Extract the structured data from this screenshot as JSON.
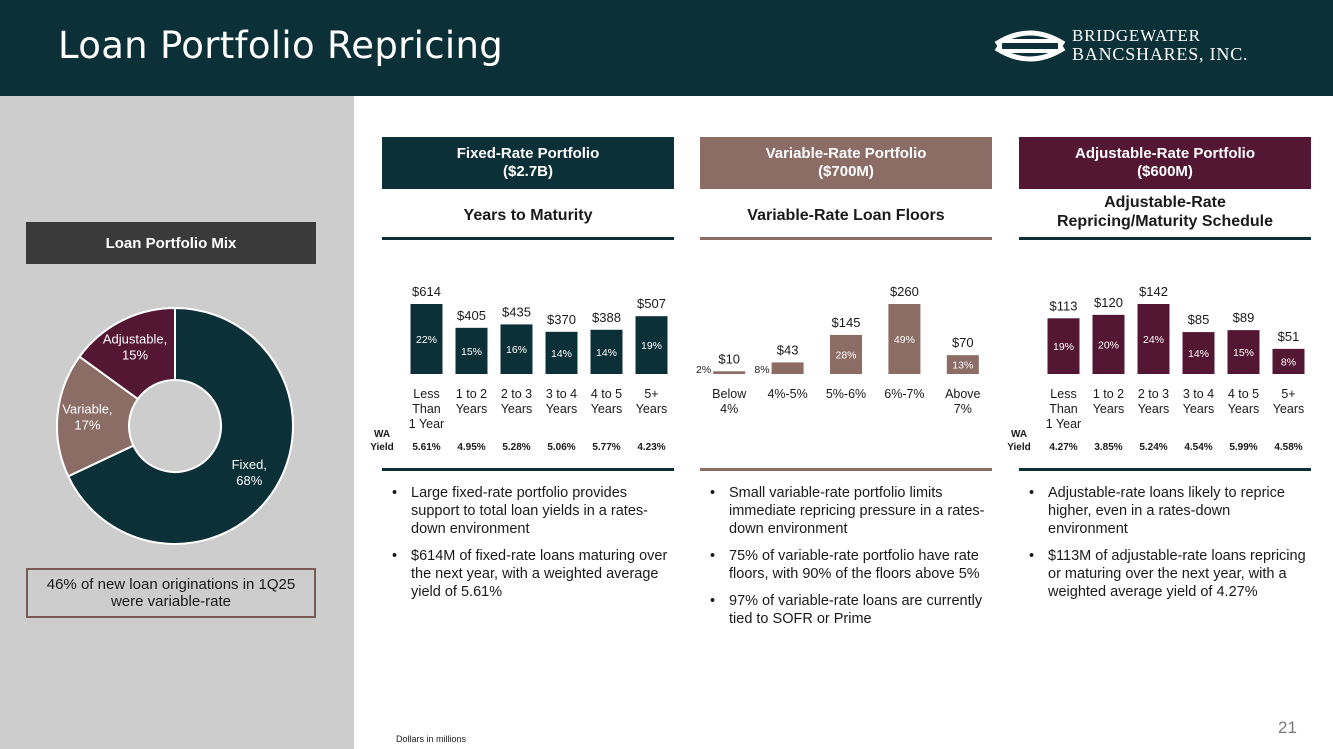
{
  "header": {
    "title": "Loan Portfolio Repricing",
    "logo_line1": "Bridgewater",
    "logo_line2": "Bancshares, Inc."
  },
  "colors": {
    "navy": "#0c3038",
    "taupe": "#8b6d66",
    "maroon": "#541733",
    "grey": "#cdcdcd"
  },
  "left": {
    "title": "Loan Portfolio Mix",
    "note": "46% of new loan originations in 1Q25 were variable-rate"
  },
  "fixed": {
    "header_line1": "Fixed-Rate Portfolio",
    "header_line2": "($2.7B)",
    "subtitle": "Years to Maturity",
    "bullets": [
      "Large fixed-rate portfolio provides support to total loan yields in a rates-down environment",
      "$614M of fixed-rate loans maturing over the next year, with a weighted average yield of 5.61%"
    ]
  },
  "variable": {
    "header_line1": "Variable-Rate Portfolio",
    "header_line2": "($700M)",
    "subtitle": "Variable-Rate Loan Floors",
    "bullets": [
      "Small variable-rate portfolio limits immediate repricing pressure in a rates-down environment",
      "75% of variable-rate portfolio have rate floors, with 90% of the floors above 5%",
      "97% of variable-rate loans are currently tied to SOFR or Prime"
    ]
  },
  "adjustable": {
    "header_line1": "Adjustable-Rate Portfolio",
    "header_line2": "($600M)",
    "subtitle_line1": "Adjustable-Rate",
    "subtitle_line2": "Repricing/Maturity Schedule",
    "bullets": [
      "Adjustable-rate loans likely to reprice higher, even in a rates-down environment",
      "$113M of adjustable-rate loans repricing or maturing over the next year, with a weighted average yield of 4.27%"
    ]
  },
  "footer": {
    "footnote": "Dollars in millions",
    "page_number": "21"
  },
  "chart_data": [
    {
      "id": "mix",
      "type": "pie",
      "title": "Loan Portfolio Mix",
      "slices": [
        {
          "label": "Fixed,",
          "pct_label": "68%",
          "value": 68,
          "color": "#0c3038"
        },
        {
          "label": "Variable,",
          "pct_label": "17%",
          "value": 17,
          "color": "#8b6d66"
        },
        {
          "label": "Adjustable,",
          "pct_label": "15%",
          "value": 15,
          "color": "#541733"
        }
      ]
    },
    {
      "id": "fixed",
      "type": "bar",
      "title": "Years to Maturity",
      "categories": [
        [
          "Less",
          "Than",
          "1 Year"
        ],
        [
          "1 to 2",
          "Years"
        ],
        [
          "2 to 3",
          "Years"
        ],
        [
          "3 to 4",
          "Years"
        ],
        [
          "4 to 5",
          "Years"
        ],
        [
          "5+",
          "Years"
        ]
      ],
      "values": [
        614,
        405,
        435,
        370,
        388,
        507
      ],
      "value_labels": [
        "$614",
        "$405",
        "$435",
        "$370",
        "$388",
        "$507"
      ],
      "pct_labels": [
        "22%",
        "15%",
        "16%",
        "14%",
        "14%",
        "19%"
      ],
      "ylim": [
        0,
        614
      ],
      "color": "#0c3038",
      "yield_label": [
        "WA",
        "Yield"
      ],
      "yields": [
        "5.61%",
        "4.95%",
        "5.28%",
        "5.06%",
        "5.77%",
        "4.23%"
      ]
    },
    {
      "id": "variable",
      "type": "bar",
      "title": "Variable-Rate Loan Floors",
      "categories": [
        [
          "Below",
          "4%"
        ],
        [
          "4%-5%"
        ],
        [
          "5%-6%"
        ],
        [
          "6%-7%"
        ],
        [
          "Above",
          "7%"
        ]
      ],
      "values": [
        10,
        43,
        145,
        260,
        70
      ],
      "value_labels": [
        "$10",
        "$43",
        "$145",
        "$260",
        "$70"
      ],
      "pct_labels": [
        "2%",
        "8%",
        "28%",
        "49%",
        "13%"
      ],
      "ylim": [
        0,
        260
      ],
      "color": "#8b6d66"
    },
    {
      "id": "adjustable",
      "type": "bar",
      "title": "Adjustable-Rate Repricing/Maturity Schedule",
      "categories": [
        [
          "Less",
          "Than",
          "1 Year"
        ],
        [
          "1 to 2",
          "Years"
        ],
        [
          "2 to 3",
          "Years"
        ],
        [
          "3 to 4",
          "Years"
        ],
        [
          "4 to 5",
          "Years"
        ],
        [
          "5+",
          "Years"
        ]
      ],
      "values": [
        113,
        120,
        142,
        85,
        89,
        51
      ],
      "value_labels": [
        "$113",
        "$120",
        "$142",
        "$85",
        "$89",
        "$51"
      ],
      "pct_labels": [
        "19%",
        "20%",
        "24%",
        "14%",
        "15%",
        "8%"
      ],
      "ylim": [
        0,
        142
      ],
      "color": "#541733",
      "yield_label": [
        "WA",
        "Yield"
      ],
      "yields": [
        "4.27%",
        "3.85%",
        "5.24%",
        "4.54%",
        "5.99%",
        "4.58%"
      ]
    }
  ]
}
